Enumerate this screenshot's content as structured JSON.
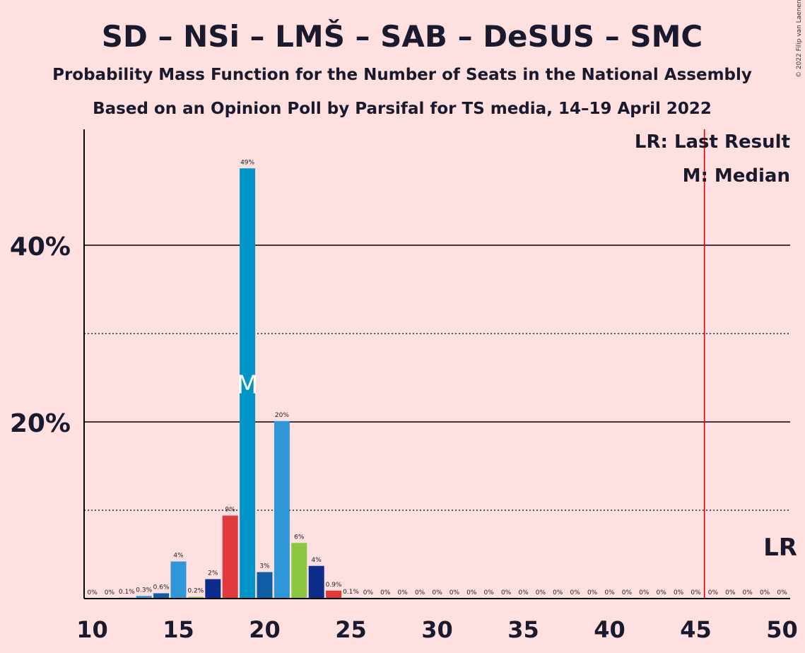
{
  "chart_data": {
    "type": "bar",
    "title": "SD – NSi – LMŠ – SAB – DeSUS – SMC",
    "subtitle1": "Probability Mass Function for the Number of Seats in the National Assembly",
    "subtitle2": "Based on an Opinion Poll by Parsifal for TS media, 14–19 April 2022",
    "copyright": "© 2022 Filip van Laenen",
    "legend": {
      "lr": "LR: Last Result",
      "m": "M: Median",
      "placement": "top-right"
    },
    "lr_marker_label": "LR",
    "median_marker_label": "M",
    "median_seat": 19,
    "last_result_seat": 45.5,
    "x_ticks": [
      "10",
      "15",
      "20",
      "25",
      "30",
      "35",
      "40",
      "45",
      "50"
    ],
    "y_ticks": [
      "20%",
      "40%"
    ],
    "ylim": [
      0,
      53
    ],
    "xlim": [
      10,
      50
    ],
    "grid": {
      "solid": [
        20,
        40
      ],
      "dotted": [
        10,
        30
      ]
    },
    "x": [
      10,
      11,
      12,
      13,
      14,
      15,
      16,
      17,
      18,
      19,
      20,
      21,
      22,
      23,
      24,
      25,
      26,
      27,
      28,
      29,
      30,
      31,
      32,
      33,
      34,
      35,
      36,
      37,
      38,
      39,
      40,
      41,
      42,
      43,
      44,
      45,
      46,
      47,
      48,
      49,
      50
    ],
    "values": [
      0,
      0,
      0.1,
      0.3,
      0.6,
      4.2,
      0.2,
      2.2,
      9.4,
      48.7,
      3.0,
      20.1,
      6.3,
      3.7,
      0.9,
      0.1,
      0,
      0,
      0,
      0,
      0,
      0,
      0,
      0,
      0,
      0,
      0,
      0,
      0,
      0,
      0,
      0,
      0,
      0,
      0,
      0,
      0,
      0,
      0,
      0,
      0
    ],
    "labels": [
      "0%",
      "0%",
      "0.1%",
      "0.3%",
      "0.6%",
      "4%",
      "0.2%",
      "2%",
      "9%",
      "49%",
      "3%",
      "20%",
      "6%",
      "4%",
      "0.9%",
      "0.1%",
      "0%",
      "0%",
      "0%",
      "0%",
      "0%",
      "0%",
      "0%",
      "0%",
      "0%",
      "0%",
      "0%",
      "0%",
      "0%",
      "0%",
      "0%",
      "0%",
      "0%",
      "0%",
      "0%",
      "0%",
      "0%",
      "0%",
      "0%",
      "0%",
      "0%"
    ],
    "colors": {
      "10": "#2f96d7",
      "11": "#2f96d7",
      "12": "#2f96d7",
      "13": "#2f96d7",
      "14": "#0d5ea6",
      "15": "#2f96d7",
      "16": "#8dc63f",
      "17": "#0d2d8c",
      "18": "#e03a3e",
      "19": "#0095c8",
      "20": "#0d5ea6",
      "21": "#2f96d7",
      "22": "#8dc63f",
      "23": "#0d2d8c",
      "24": "#e03a3e"
    },
    "lr_color": "#e00000"
  }
}
